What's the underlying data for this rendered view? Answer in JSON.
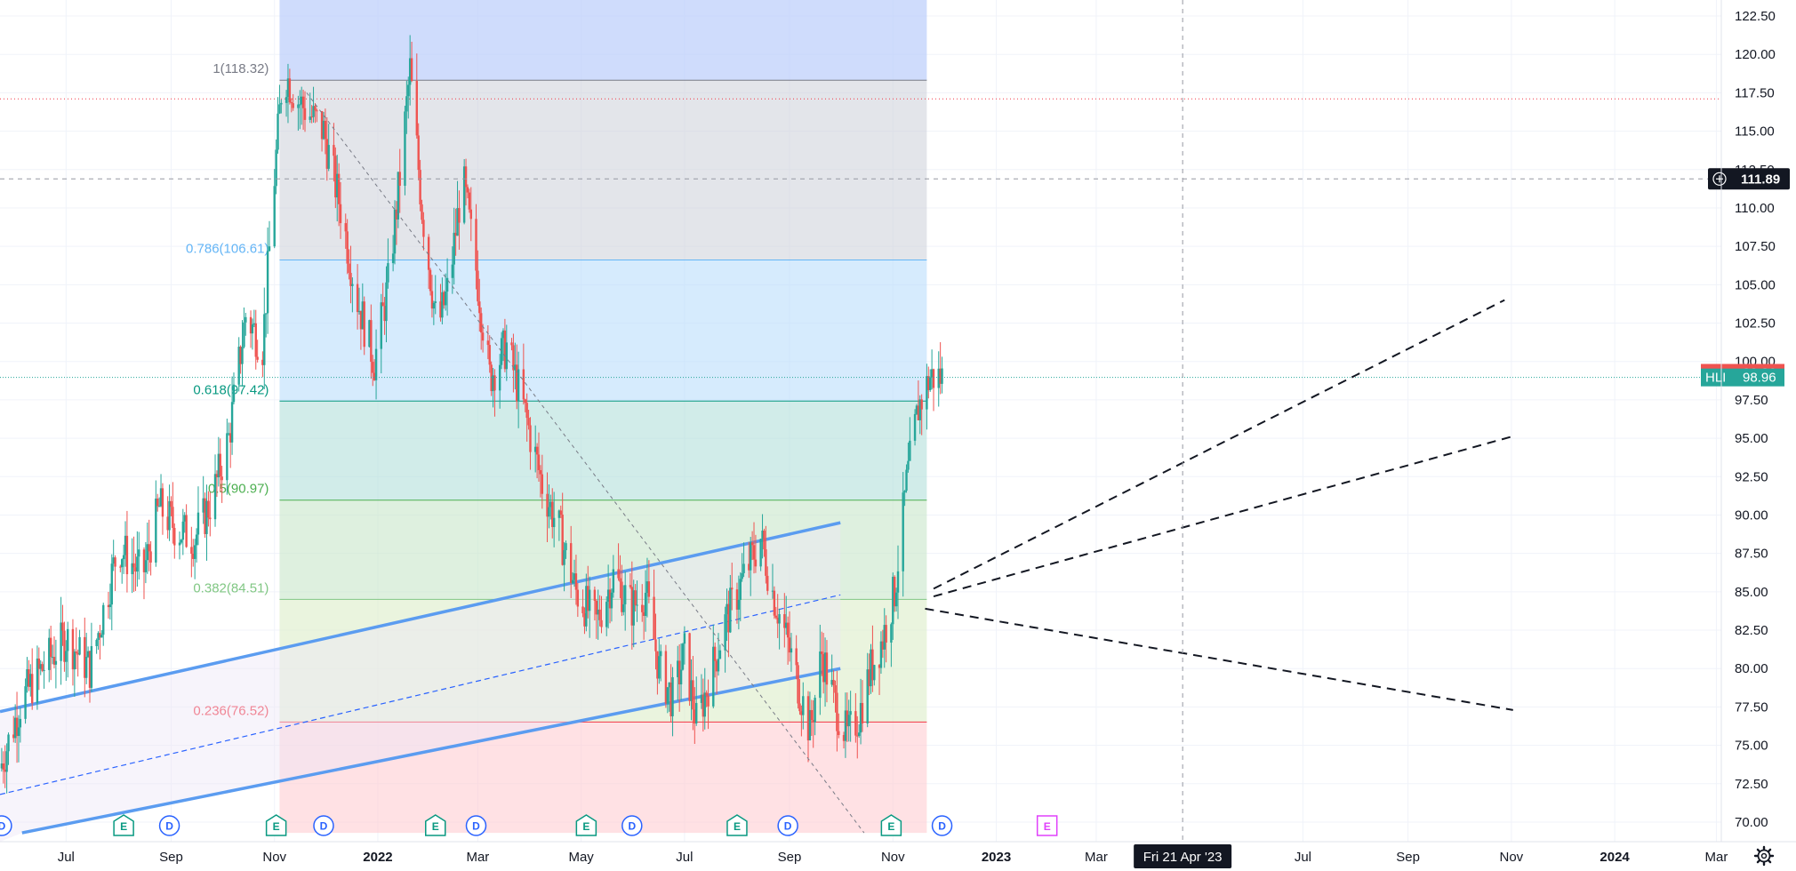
{
  "chart_data": {
    "type": "candlestick",
    "symbol": "HLI",
    "y_axis": {
      "ticks": [
        "70.00",
        "72.50",
        "75.00",
        "77.50",
        "80.00",
        "82.50",
        "85.00",
        "87.50",
        "90.00",
        "92.50",
        "95.00",
        "97.50",
        "100.00",
        "102.50",
        "105.00",
        "107.50",
        "110.00",
        "112.50",
        "115.00",
        "117.50",
        "120.00",
        "122.50"
      ],
      "range": [
        69.3,
        123.1
      ]
    },
    "x_axis": {
      "ticks": [
        {
          "label": "Jul",
          "date": "2021-07-01",
          "bold": false
        },
        {
          "label": "Sep",
          "date": "2021-09-01",
          "bold": false
        },
        {
          "label": "Nov",
          "date": "2021-11-01",
          "bold": false
        },
        {
          "label": "2022",
          "date": "2022-01-01",
          "bold": true
        },
        {
          "label": "Mar",
          "date": "2022-03-01",
          "bold": false
        },
        {
          "label": "May",
          "date": "2022-05-01",
          "bold": false
        },
        {
          "label": "Jul",
          "date": "2022-07-01",
          "bold": false
        },
        {
          "label": "Sep",
          "date": "2022-09-01",
          "bold": false
        },
        {
          "label": "Nov",
          "date": "2022-11-01",
          "bold": false
        },
        {
          "label": "2023",
          "date": "2023-01-01",
          "bold": true
        },
        {
          "label": "Mar",
          "date": "2023-03-01",
          "bold": false
        },
        {
          "label": "Jul",
          "date": "2023-07-01",
          "bold": false
        },
        {
          "label": "Sep",
          "date": "2023-09-01",
          "bold": false
        },
        {
          "label": "Nov",
          "date": "2023-11-01",
          "bold": false
        },
        {
          "label": "2024",
          "date": "2024-01-01",
          "bold": true
        },
        {
          "label": "Mar",
          "date": "2024-03-01",
          "bold": false
        }
      ],
      "range": [
        "2021-05-23",
        "2024-04-17"
      ]
    },
    "crosshair": {
      "date": "2023-04-21",
      "label": "Fri 21 Apr '23",
      "price_label": "111.89",
      "price": 111.89
    },
    "current_price": {
      "label": "HLI",
      "value": "98.96",
      "value_num": 98.96,
      "color": "#26a69a"
    },
    "prev_price": {
      "value": "99.26",
      "value_num": 99.26,
      "color": "#ef5350"
    },
    "red_level": 117.1,
    "fib": {
      "start_date": "2021-11-04",
      "end_date": "2022-11-21",
      "high_value": 123.1,
      "levels": [
        {
          "label": "1(118.32)",
          "value": 118.32,
          "color": "#787b86",
          "fill": "#d1d4dc"
        },
        {
          "label": "0.786(106.61)",
          "value": 106.61,
          "color": "#64b5f6",
          "fill": "#bbdefb"
        },
        {
          "label": "0.618(97.42)",
          "value": 97.42,
          "color": "#089981",
          "fill": "#b2dfdb"
        },
        {
          "label": "0.5(90.97)",
          "value": 90.97,
          "color": "#4caf50",
          "fill": "#c8e6c9"
        },
        {
          "label": "0.382(84.51)",
          "value": 84.51,
          "color": "#81c784",
          "fill": "#dcedc8"
        },
        {
          "label": "0.236(76.52)",
          "value": 76.52,
          "color": "#f23645",
          "fill": "#ffcdd2"
        },
        {
          "label": "",
          "value": 69.3,
          "color": "#f23645",
          "fill": "#ffcdd2"
        }
      ],
      "top_fill": "#bbcdfb"
    },
    "trend_lines": [
      {
        "style": "dashed-thin",
        "color": "#787b86",
        "from": {
          "date": "2021-11-20",
          "value": 117.5
        },
        "to": {
          "date": "2022-10-15",
          "value": 69.3
        }
      },
      {
        "style": "dashed",
        "color": "#131722",
        "from": {
          "date": "2022-11-25",
          "value": 85.2
        },
        "to": {
          "date": "2023-10-28",
          "value": 104.0
        }
      },
      {
        "style": "dashed",
        "color": "#131722",
        "from": {
          "date": "2022-11-25",
          "value": 84.7
        },
        "to": {
          "date": "2023-11-01",
          "value": 95.1
        }
      },
      {
        "style": "dashed",
        "color": "#131722",
        "from": {
          "date": "2022-11-20",
          "value": 83.9
        },
        "to": {
          "date": "2023-11-02",
          "value": 77.3
        }
      }
    ],
    "channel": {
      "color": "#5b9cf0",
      "upper": {
        "from": {
          "date": "2021-05-23",
          "value": 77.2
        },
        "to": {
          "date": "2022-10-01",
          "value": 89.5
        }
      },
      "middle": {
        "from": {
          "date": "2021-05-23",
          "value": 71.8
        },
        "to": {
          "date": "2022-10-01",
          "value": 84.8
        }
      },
      "lower": {
        "from": {
          "date": "2021-06-05",
          "value": 69.3
        },
        "to": {
          "date": "2022-10-01",
          "value": 80.0
        }
      },
      "fill_upper": "#ede7f6"
    },
    "events": [
      {
        "type": "D",
        "date": "2021-05-24"
      },
      {
        "type": "E",
        "date": "2021-08-04"
      },
      {
        "type": "D",
        "date": "2021-08-31"
      },
      {
        "type": "E",
        "date": "2021-11-02"
      },
      {
        "type": "D",
        "date": "2021-11-30"
      },
      {
        "type": "E",
        "date": "2022-02-04"
      },
      {
        "type": "D",
        "date": "2022-02-28"
      },
      {
        "type": "E",
        "date": "2022-05-04"
      },
      {
        "type": "D",
        "date": "2022-05-31"
      },
      {
        "type": "E",
        "date": "2022-08-01"
      },
      {
        "type": "D",
        "date": "2022-08-31"
      },
      {
        "type": "E",
        "date": "2022-10-31"
      },
      {
        "type": "D",
        "date": "2022-11-30"
      },
      {
        "type": "E",
        "date": "2023-01-31",
        "future": true
      }
    ],
    "ohlc_points": [
      [
        "2021-05-23",
        73.5
      ],
      [
        "2021-06-05",
        78.0
      ],
      [
        "2021-06-20",
        80.5
      ],
      [
        "2021-07-01",
        82.0
      ],
      [
        "2021-07-15",
        80.0
      ],
      [
        "2021-08-01",
        88.0
      ],
      [
        "2021-08-15",
        86.0
      ],
      [
        "2021-08-25",
        90.5
      ],
      [
        "2021-09-05",
        89.0
      ],
      [
        "2021-09-15",
        88.5
      ],
      [
        "2021-09-25",
        91.0
      ],
      [
        "2021-10-05",
        95.0
      ],
      [
        "2021-10-15",
        103.0
      ],
      [
        "2021-10-25",
        101.0
      ],
      [
        "2021-11-01",
        112.0
      ],
      [
        "2021-11-06",
        119.0
      ],
      [
        "2021-11-15",
        117.0
      ],
      [
        "2021-11-30",
        115.0
      ],
      [
        "2021-12-10",
        110.0
      ],
      [
        "2021-12-20",
        104.0
      ],
      [
        "2021-12-30",
        100.0
      ],
      [
        "2022-01-07",
        105.0
      ],
      [
        "2022-01-14",
        112.0
      ],
      [
        "2022-01-20",
        119.0
      ],
      [
        "2022-01-27",
        110.0
      ],
      [
        "2022-02-05",
        102.0
      ],
      [
        "2022-02-12",
        105.0
      ],
      [
        "2022-02-20",
        112.0
      ],
      [
        "2022-02-28",
        106.0
      ],
      [
        "2022-03-08",
        99.0
      ],
      [
        "2022-03-18",
        101.0
      ],
      [
        "2022-03-28",
        97.0
      ],
      [
        "2022-04-08",
        92.0
      ],
      [
        "2022-04-18",
        89.0
      ],
      [
        "2022-04-28",
        85.0
      ],
      [
        "2022-05-10",
        83.0
      ],
      [
        "2022-05-20",
        86.0
      ],
      [
        "2022-05-31",
        84.0
      ],
      [
        "2022-06-08",
        85.0
      ],
      [
        "2022-06-16",
        80.0
      ],
      [
        "2022-06-24",
        78.0
      ],
      [
        "2022-07-01",
        81.0
      ],
      [
        "2022-07-08",
        76.5
      ],
      [
        "2022-07-15",
        79.0
      ],
      [
        "2022-07-25",
        83.0
      ],
      [
        "2022-08-05",
        86.0
      ],
      [
        "2022-08-15",
        88.5
      ],
      [
        "2022-08-22",
        85.0
      ],
      [
        "2022-08-30",
        82.0
      ],
      [
        "2022-09-06",
        79.0
      ],
      [
        "2022-09-13",
        76.0
      ],
      [
        "2022-09-20",
        81.0
      ],
      [
        "2022-09-27",
        78.0
      ],
      [
        "2022-10-05",
        75.5
      ],
      [
        "2022-10-12",
        77.0
      ],
      [
        "2022-10-19",
        80.0
      ],
      [
        "2022-10-26",
        82.0
      ],
      [
        "2022-11-02",
        85.0
      ],
      [
        "2022-11-09",
        92.0
      ],
      [
        "2022-11-16",
        97.0
      ],
      [
        "2022-11-23",
        99.0
      ],
      [
        "2022-11-30",
        98.96
      ]
    ]
  }
}
